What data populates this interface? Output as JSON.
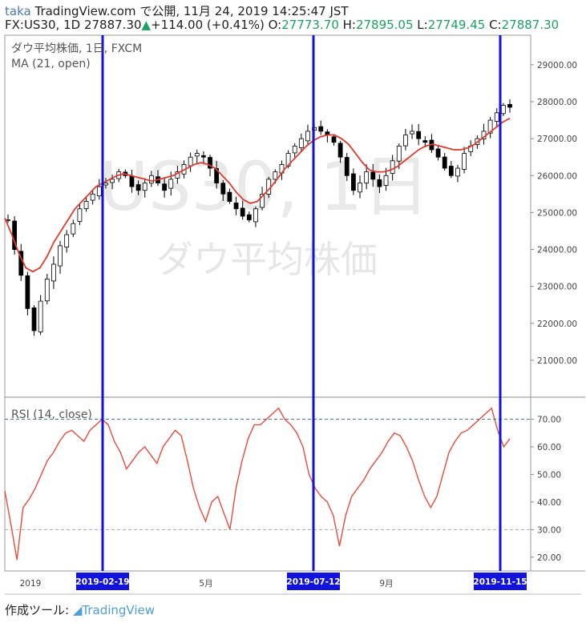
{
  "header": {
    "author": "taka",
    "site": "TradingView.com",
    "published_label": "で公開,",
    "published_datetime": "11月 24, 2019 14:25:47 JST",
    "symbol": "FX:US30, 1D",
    "last": "27887.30",
    "change": "+114.00 (+0.41%)",
    "o_label": "O:",
    "o_value": "27773.70",
    "h_label": "H:",
    "h_value": "27895.05",
    "l_label": "L:",
    "l_value": "27749.45",
    "c_label": "C:",
    "c_value": "27887.30"
  },
  "legend": {
    "instrument": "ダウ平均株価, 1日, FXCM",
    "ma": "MA (21, open)",
    "rsi": "RSI (14, close)"
  },
  "watermark": {
    "line1": "US30, 1日",
    "line2": "ダウ平均株価"
  },
  "footer": {
    "made_with": "作成ツール:",
    "logo_text": "TradingView"
  },
  "colors": {
    "candle_up": "#ffffff",
    "candle_down": "#000000",
    "ma": "#e3392b",
    "rsi": "#ea4a3c",
    "vline": "#1212dd",
    "date_label_bg": "#1212dd",
    "green": "#1aa260"
  },
  "chart_data": [
    {
      "type": "candlestick",
      "title": "ダウ平均株価, 1日, FXCM",
      "indicator": "MA (21, open)",
      "y_ticks": [
        "21000.00",
        "22000.00",
        "23000.00",
        "24000.00",
        "25000.00",
        "26000.00",
        "27000.00",
        "28000.00",
        "29000.00"
      ],
      "ylim": [
        20000,
        29800
      ],
      "x_ticks": [
        "2019",
        "5月",
        "9月"
      ],
      "series_close": [
        24800,
        24000,
        23300,
        22400,
        21800,
        22600,
        23200,
        23600,
        24100,
        24400,
        24700,
        25100,
        25300,
        25500,
        25700,
        25800,
        25900,
        26100,
        26000,
        25700,
        25600,
        25800,
        26000,
        25800,
        25600,
        25900,
        26100,
        26300,
        26500,
        26600,
        26500,
        26200,
        25800,
        25500,
        25300,
        25100,
        24900,
        24800,
        25100,
        25500,
        25900,
        26100,
        26300,
        26600,
        26800,
        27000,
        27200,
        27300,
        27200,
        27100,
        26900,
        26500,
        26000,
        25600,
        25800,
        26100,
        25900,
        25700,
        26000,
        26400,
        26800,
        27100,
        27200,
        27000,
        26900,
        26700,
        26500,
        26200,
        26000,
        26200,
        26600,
        26800,
        27000,
        27200,
        27500,
        27700,
        27900,
        27850
      ],
      "ma_values": [
        24850,
        24400,
        23900,
        23500,
        23400,
        23500,
        23800,
        24200,
        24500,
        24800,
        25100,
        25300,
        25500,
        25700,
        25800,
        25900,
        26000,
        26050,
        26000,
        25950,
        25900,
        25850,
        25900,
        25950,
        26000,
        26100,
        26200,
        26300,
        26350,
        26300,
        26200,
        26000,
        25800,
        25550,
        25350,
        25250,
        25300,
        25500,
        25700,
        25950,
        26200,
        26400,
        26600,
        26800,
        26950,
        27050,
        27100,
        27100,
        27000,
        26850,
        26600,
        26350,
        26150,
        26100,
        26100,
        26150,
        26250,
        26400,
        26550,
        26700,
        26800,
        26850,
        26800,
        26750,
        26700,
        26700,
        26750,
        26850,
        27000,
        27150,
        27300,
        27450,
        27550
      ]
    },
    {
      "type": "line",
      "title": "RSI (14, close)",
      "y_ticks": [
        "20.00",
        "30.00",
        "40.00",
        "50.00",
        "60.00",
        "70.00"
      ],
      "ylim": [
        15,
        78
      ],
      "reference_lines": [
        30,
        70
      ],
      "values": [
        44,
        32,
        19,
        38,
        41,
        45,
        50,
        55,
        58,
        62,
        65,
        66,
        64,
        62,
        66,
        68,
        70,
        68,
        62,
        58,
        52,
        55,
        58,
        60,
        57,
        54,
        60,
        63,
        66,
        64,
        55,
        45,
        38,
        33,
        40,
        42,
        36,
        30,
        45,
        55,
        63,
        68,
        68,
        70,
        72,
        74,
        70,
        68,
        65,
        60,
        50,
        45,
        42,
        40,
        35,
        24,
        35,
        42,
        45,
        48,
        52,
        55,
        58,
        62,
        65,
        64,
        60,
        55,
        48,
        42,
        38,
        42,
        50,
        58,
        62,
        65,
        66,
        68,
        70,
        72,
        74,
        66,
        60,
        63
      ]
    }
  ],
  "date_labels": [
    "2019-02-19",
    "2019-07-12",
    "2019-11-15"
  ]
}
